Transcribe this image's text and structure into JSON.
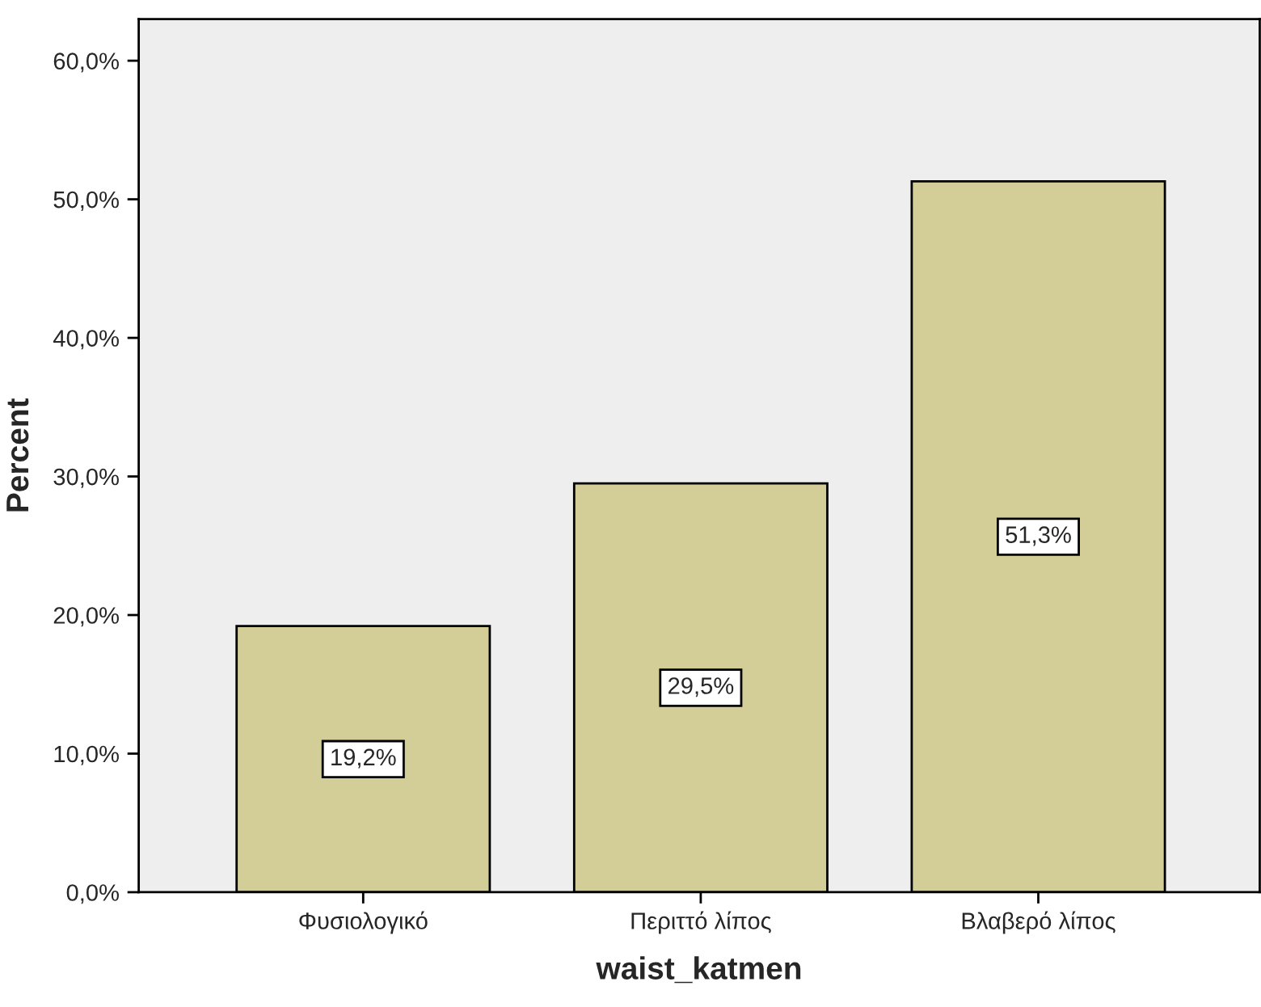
{
  "chart_data": {
    "type": "bar",
    "xlabel": "waist_katmen",
    "ylabel": "Percent",
    "categories": [
      "Φυσιολογικό",
      "Περιττό λίπος",
      "Βλαβερό λίπος"
    ],
    "values": [
      19.2,
      29.5,
      51.3
    ],
    "value_labels": [
      "19,2%",
      "29,5%",
      "51,3%"
    ],
    "color": "#d3ce97",
    "ylim": [
      0,
      63
    ],
    "yticks": [
      {
        "value": 0,
        "label": "0,0%"
      },
      {
        "value": 10,
        "label": "10,0%"
      },
      {
        "value": 20,
        "label": "20,0%"
      },
      {
        "value": 30,
        "label": "30,0%"
      },
      {
        "value": 40,
        "label": "40,0%"
      },
      {
        "value": 50,
        "label": "50,0%"
      },
      {
        "value": 60,
        "label": "60,0%"
      }
    ],
    "grid": false,
    "legend": false
  }
}
